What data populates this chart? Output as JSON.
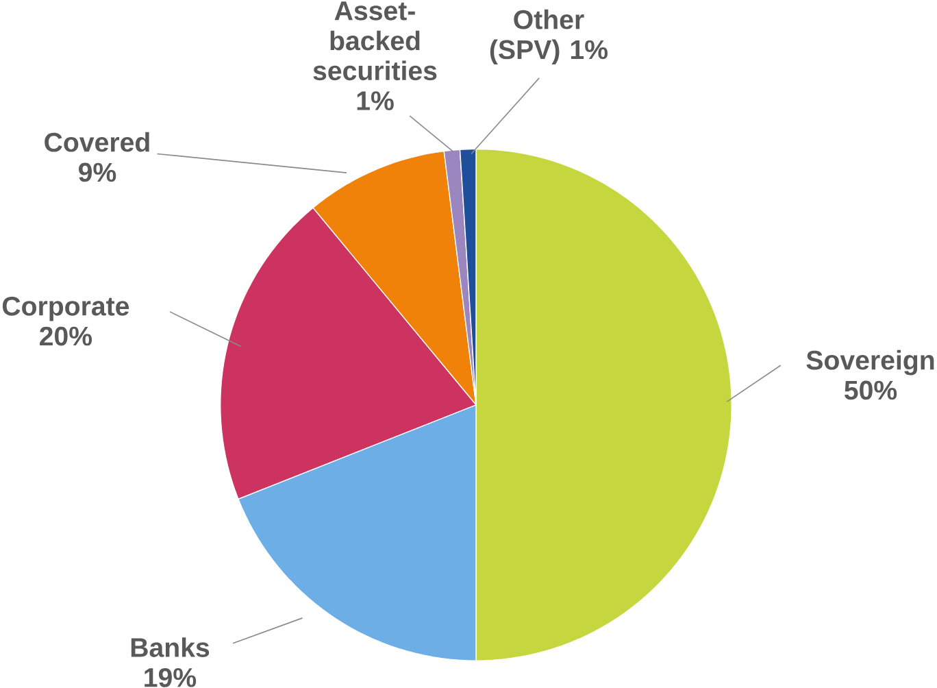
{
  "chart_data": {
    "type": "pie",
    "categories": [
      "Sovereign",
      "Banks",
      "Corporate",
      "Covered",
      "Asset-backed securities",
      "Other (SPV)"
    ],
    "values": [
      50,
      19,
      20,
      9,
      1,
      1
    ],
    "value_labels": [
      "50%",
      "19%",
      "20%",
      "9%",
      "1%",
      "1%"
    ],
    "colors": [
      "#c5d63e",
      "#6daee6",
      "#cc3360",
      "#f0820a",
      "#9b86c0",
      "#1f4e9b"
    ]
  }
}
